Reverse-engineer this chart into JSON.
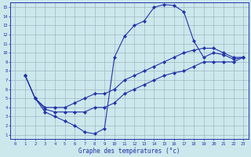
{
  "title": "Graphe des températures (°c)",
  "bg_color": "#cce8ec",
  "grid_color": "#99aabb",
  "line_color": "#2233aa",
  "xlim_min": -0.5,
  "xlim_max": 23.5,
  "ylim_min": 0.5,
  "ylim_max": 15.5,
  "xticks": [
    0,
    1,
    2,
    3,
    4,
    5,
    6,
    7,
    8,
    9,
    10,
    11,
    12,
    13,
    14,
    15,
    16,
    17,
    18,
    19,
    20,
    21,
    22,
    23
  ],
  "yticks": [
    1,
    2,
    3,
    4,
    5,
    6,
    7,
    8,
    9,
    10,
    11,
    12,
    13,
    14,
    15
  ],
  "line1_x": [
    1,
    2,
    3,
    4,
    5,
    6,
    7,
    8,
    9,
    10,
    11,
    12,
    13,
    14,
    15,
    16,
    17,
    18,
    19,
    20,
    21,
    22,
    23
  ],
  "line1_y": [
    7.5,
    5.0,
    3.5,
    3.0,
    2.5,
    2.0,
    1.3,
    1.1,
    1.7,
    9.5,
    11.8,
    13.0,
    13.5,
    15.0,
    15.3,
    15.2,
    14.5,
    11.3,
    9.5,
    10.0,
    9.8,
    9.3,
    9.5
  ],
  "line2_x": [
    1,
    2,
    3,
    4,
    5,
    6,
    7,
    8,
    9,
    10,
    11,
    12,
    13,
    14,
    15,
    16,
    17,
    18,
    19,
    20,
    21,
    22,
    23
  ],
  "line2_y": [
    7.5,
    5.0,
    4.0,
    4.0,
    4.0,
    4.5,
    5.0,
    5.5,
    5.5,
    6.0,
    7.0,
    7.5,
    8.0,
    8.5,
    9.0,
    9.5,
    10.0,
    10.3,
    10.5,
    10.5,
    10.0,
    9.5,
    9.5
  ],
  "line3_x": [
    1,
    2,
    3,
    4,
    5,
    6,
    7,
    8,
    9,
    10,
    11,
    12,
    13,
    14,
    15,
    16,
    17,
    18,
    19,
    20,
    21,
    22,
    23
  ],
  "line3_y": [
    7.5,
    5.0,
    3.8,
    3.5,
    3.5,
    3.5,
    3.5,
    4.0,
    4.0,
    4.5,
    5.5,
    6.0,
    6.5,
    7.0,
    7.5,
    7.8,
    8.0,
    8.5,
    9.0,
    9.0,
    9.0,
    9.0,
    9.5
  ]
}
